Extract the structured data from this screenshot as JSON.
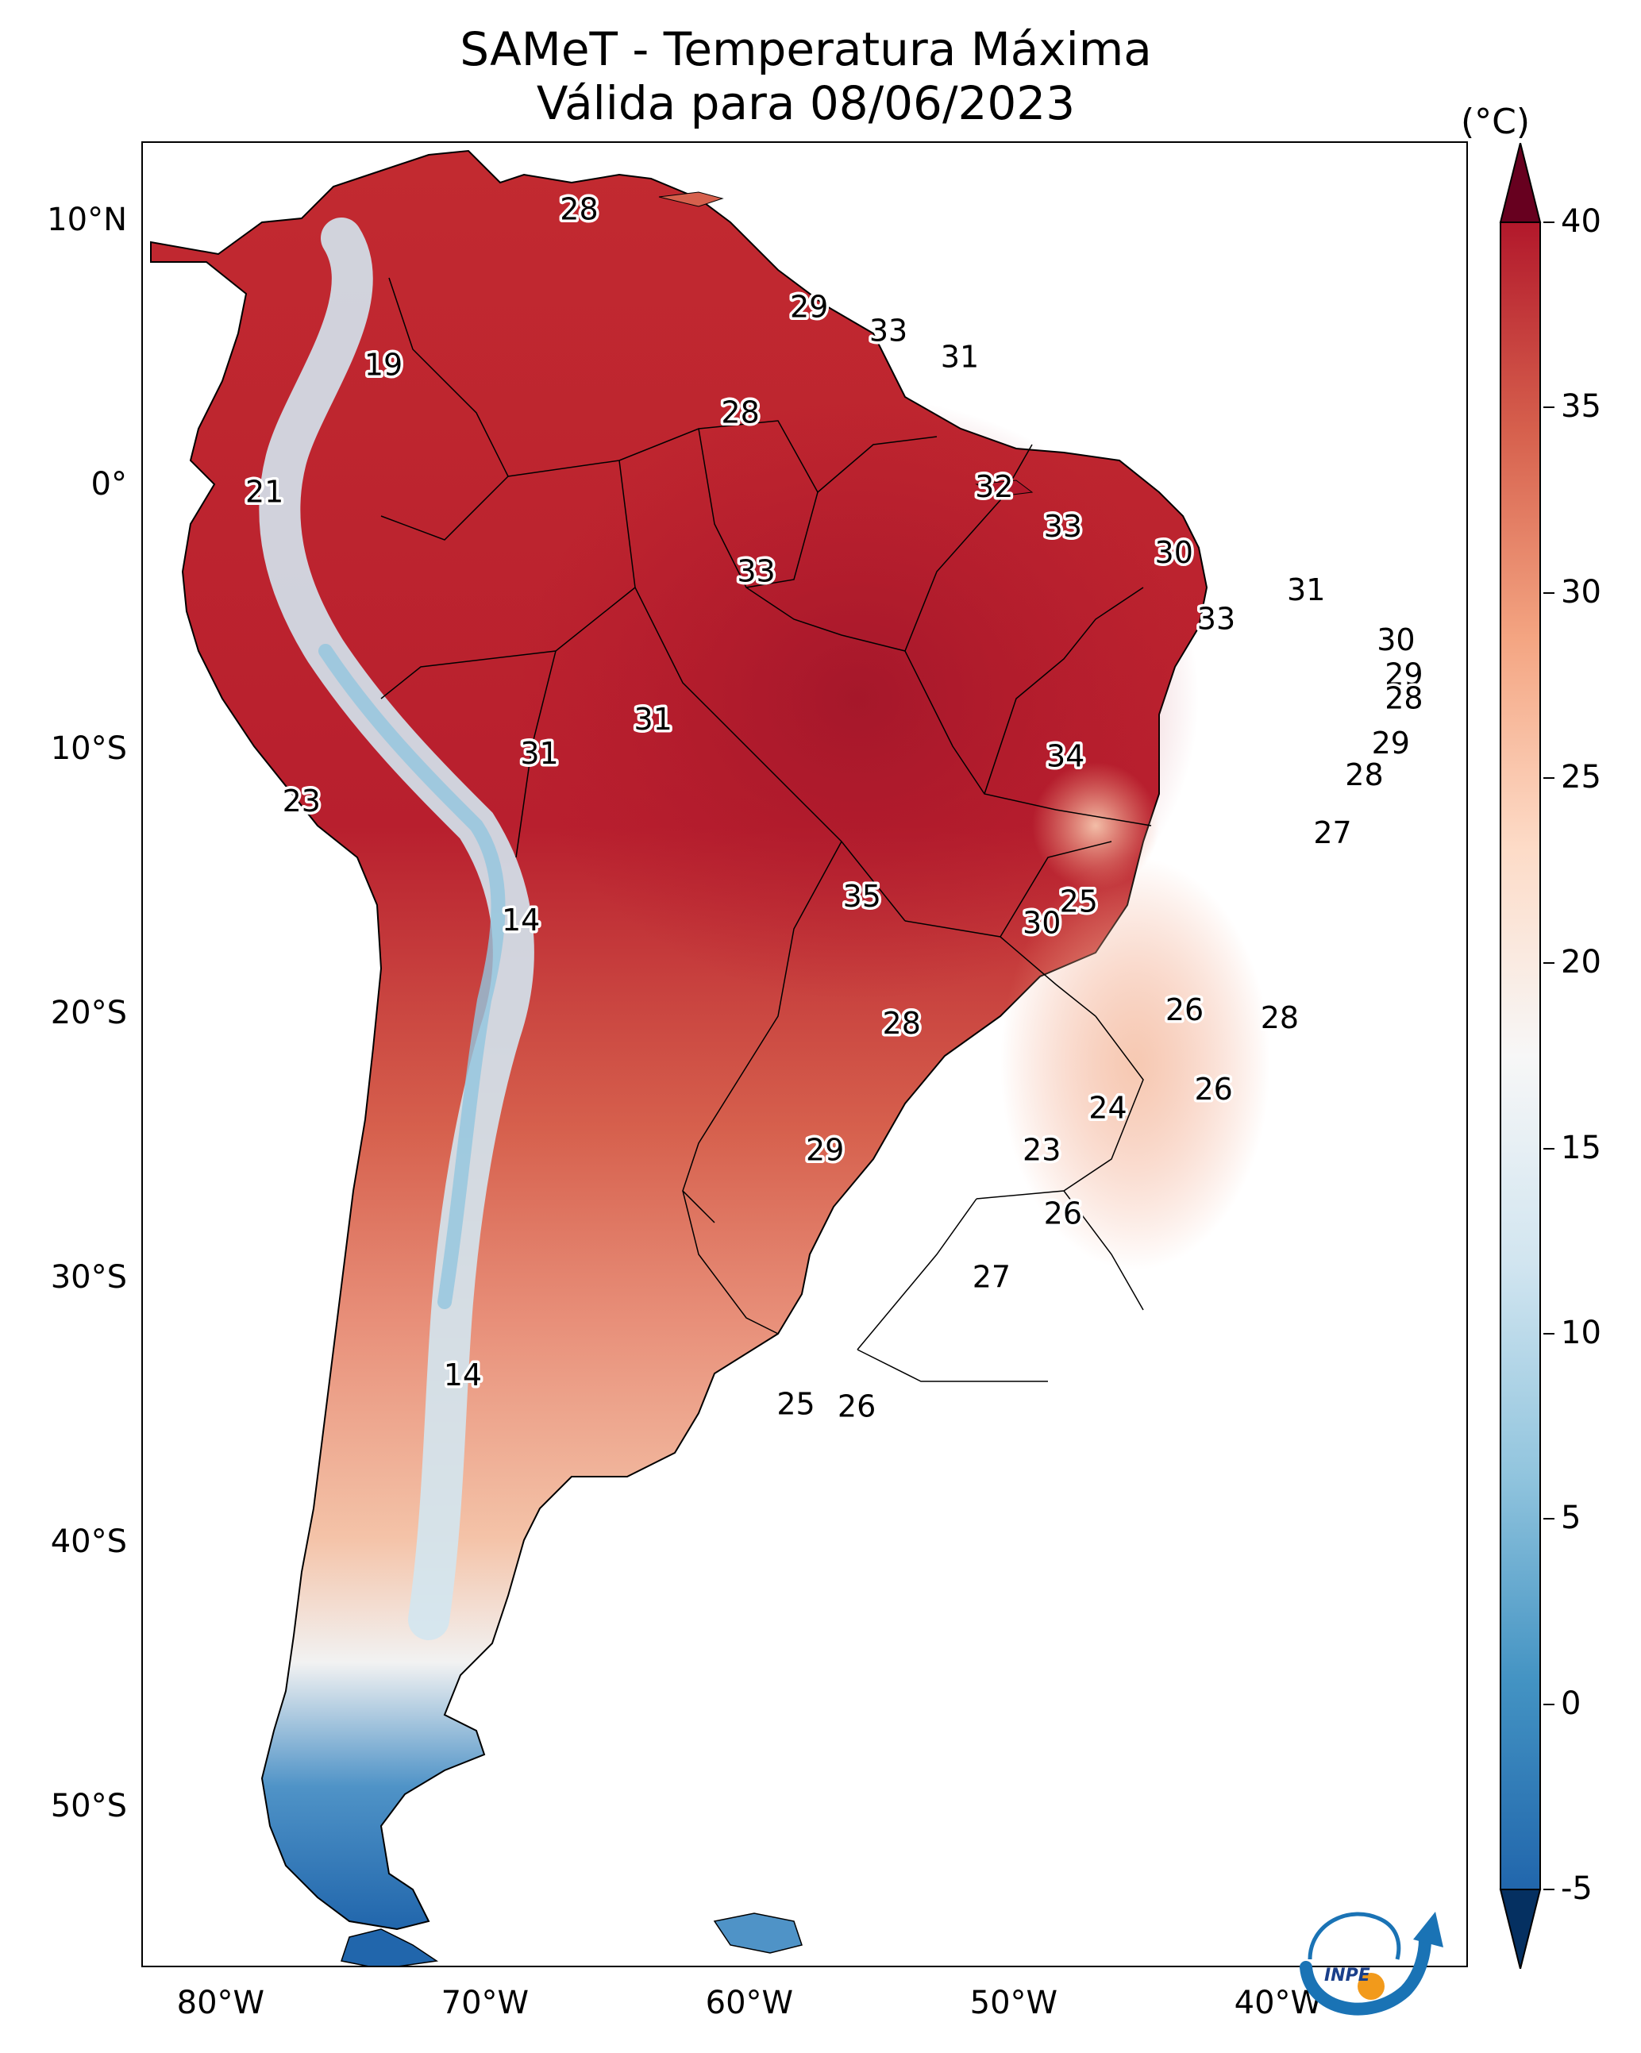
{
  "title": {
    "line1": "SAMeT - Temperatura Máxima",
    "line2": "Válida para 08/06/2023"
  },
  "map": {
    "lat_ticks": [
      "10°N",
      "0°",
      "10°S",
      "20°S",
      "30°S",
      "40°S",
      "50°S"
    ],
    "lon_ticks": [
      "80°W",
      "70°W",
      "60°W",
      "50°W",
      "40°W"
    ],
    "labels": [
      {
        "text": "28",
        "lon": -66.5,
        "lat": 10.5
      },
      {
        "text": "19",
        "lon": -73.9,
        "lat": 4.6
      },
      {
        "text": "29",
        "lon": -57.8,
        "lat": 6.8
      },
      {
        "text": "33",
        "lon": -54.8,
        "lat": 5.9
      },
      {
        "text": "31",
        "lon": -52.1,
        "lat": 4.9
      },
      {
        "text": "28",
        "lon": -60.4,
        "lat": 2.8
      },
      {
        "text": "21",
        "lon": -78.4,
        "lat": -0.2
      },
      {
        "text": "32",
        "lon": -50.8,
        "lat": 0.0
      },
      {
        "text": "33",
        "lon": -48.2,
        "lat": -1.5
      },
      {
        "text": "30",
        "lon": -44.0,
        "lat": -2.5
      },
      {
        "text": "33",
        "lon": -59.8,
        "lat": -3.2
      },
      {
        "text": "31",
        "lon": -39.0,
        "lat": -3.9
      },
      {
        "text": "33",
        "lon": -42.4,
        "lat": -5.0
      },
      {
        "text": "30",
        "lon": -35.6,
        "lat": -5.8
      },
      {
        "text": "29",
        "lon": -35.3,
        "lat": -7.1
      },
      {
        "text": "28",
        "lon": -35.3,
        "lat": -8.0
      },
      {
        "text": "31",
        "lon": -63.7,
        "lat": -8.8
      },
      {
        "text": "31",
        "lon": -68.0,
        "lat": -10.1
      },
      {
        "text": "34",
        "lon": -48.1,
        "lat": -10.2
      },
      {
        "text": "29",
        "lon": -35.8,
        "lat": -9.7
      },
      {
        "text": "28",
        "lon": -36.8,
        "lat": -10.9
      },
      {
        "text": "23",
        "lon": -77.0,
        "lat": -11.9
      },
      {
        "text": "27",
        "lon": -38.0,
        "lat": -13.1
      },
      {
        "text": "35",
        "lon": -55.8,
        "lat": -15.5
      },
      {
        "text": "25",
        "lon": -47.6,
        "lat": -15.7
      },
      {
        "text": "30",
        "lon": -49.0,
        "lat": -16.5
      },
      {
        "text": "14",
        "lon": -68.7,
        "lat": -16.4
      },
      {
        "text": "26",
        "lon": -43.6,
        "lat": -19.8
      },
      {
        "text": "28",
        "lon": -54.3,
        "lat": -20.3
      },
      {
        "text": "28",
        "lon": -40.0,
        "lat": -20.1
      },
      {
        "text": "26",
        "lon": -42.5,
        "lat": -22.8
      },
      {
        "text": "24",
        "lon": -46.5,
        "lat": -23.5
      },
      {
        "text": "23",
        "lon": -49.0,
        "lat": -25.1
      },
      {
        "text": "29",
        "lon": -57.2,
        "lat": -25.1
      },
      {
        "text": "26",
        "lon": -48.2,
        "lat": -27.5
      },
      {
        "text": "27",
        "lon": -50.9,
        "lat": -29.9
      },
      {
        "text": "14",
        "lon": -70.9,
        "lat": -33.6
      },
      {
        "text": "25",
        "lon": -58.3,
        "lat": -34.7
      },
      {
        "text": "26",
        "lon": -56.0,
        "lat": -34.8
      }
    ]
  },
  "colorbar": {
    "unit": "(°C)",
    "min": -5,
    "max": 40,
    "ticks": [
      "40",
      "35",
      "30",
      "25",
      "20",
      "15",
      "10",
      "5",
      "0",
      "-5"
    ],
    "colormap": "RdBu_r",
    "colors": [
      "#053061",
      "#2166ac",
      "#4393c3",
      "#92c5de",
      "#d1e5f0",
      "#f7f7f7",
      "#fddbc7",
      "#f4a582",
      "#d6604d",
      "#b2182b",
      "#67001f"
    ]
  },
  "logo": {
    "text": "INPE"
  }
}
